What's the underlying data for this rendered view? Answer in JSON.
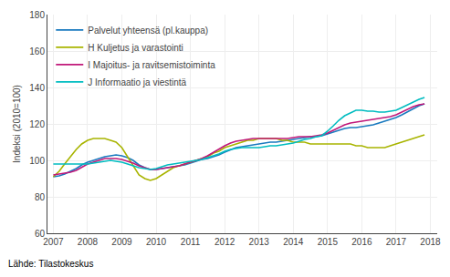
{
  "chart_data": {
    "type": "line",
    "ylabel": "Indeksi (2010=100)",
    "annotations": [
      "Lähde: Tilastokeskus"
    ],
    "x": [
      2007.0,
      2007.17,
      2007.33,
      2007.5,
      2007.67,
      2007.83,
      2008.0,
      2008.17,
      2008.33,
      2008.5,
      2008.67,
      2008.83,
      2009.0,
      2009.17,
      2009.33,
      2009.5,
      2009.67,
      2009.83,
      2010.0,
      2010.17,
      2010.33,
      2010.5,
      2010.67,
      2010.83,
      2011.0,
      2011.17,
      2011.33,
      2011.5,
      2011.67,
      2011.83,
      2012.0,
      2012.17,
      2012.33,
      2012.5,
      2012.67,
      2012.83,
      2013.0,
      2013.17,
      2013.33,
      2013.5,
      2013.67,
      2013.83,
      2014.0,
      2014.17,
      2014.33,
      2014.5,
      2014.67,
      2014.83,
      2015.0,
      2015.17,
      2015.33,
      2015.5,
      2015.67,
      2015.83,
      2016.0,
      2016.17,
      2016.33,
      2016.5,
      2016.67,
      2016.83,
      2017.0,
      2017.17,
      2017.33,
      2017.5,
      2017.67,
      2017.83
    ],
    "series": [
      {
        "name": "Palvelut yhteensä (pl.kauppa)",
        "color": "#1a7abf",
        "values": [
          91,
          91.5,
          92.5,
          94,
          95.5,
          97.5,
          99,
          100,
          101,
          102,
          102.5,
          103,
          102.5,
          101.5,
          100,
          97.5,
          96,
          95,
          95,
          95.5,
          96,
          96.5,
          97,
          97.5,
          98.5,
          99.5,
          100.5,
          101,
          102,
          103,
          104.5,
          106,
          107,
          107.5,
          108,
          108.5,
          109,
          109.5,
          110,
          110,
          110.5,
          111,
          111.5,
          112,
          112.5,
          113,
          113,
          113.5,
          114.5,
          115.5,
          116.5,
          117.5,
          118,
          118,
          118.5,
          119,
          119.5,
          120.5,
          121.5,
          122.5,
          123.5,
          125,
          126.5,
          128.5,
          130,
          131
        ]
      },
      {
        "name": "H Kuljetus ja varastointi",
        "color": "#a8b400",
        "values": [
          91,
          94,
          98,
          102,
          106,
          109,
          111,
          112,
          112,
          112,
          111,
          110,
          107,
          102,
          97,
          92,
          90,
          89,
          90,
          92,
          94,
          96,
          97,
          98,
          99,
          100,
          101,
          102,
          104,
          105,
          107,
          108,
          109,
          110,
          111,
          111,
          112,
          112,
          112,
          112,
          111,
          111,
          110,
          110,
          110,
          109,
          109,
          109,
          109,
          109,
          109,
          109,
          109,
          108,
          108,
          107,
          107,
          107,
          107,
          108,
          109,
          110,
          111,
          112,
          113,
          114
        ]
      },
      {
        "name": "I Majoitus- ja ravitsemistoiminta",
        "color": "#c0187a",
        "values": [
          92,
          92.5,
          93,
          93.5,
          94.5,
          96,
          98,
          99,
          100,
          101,
          101,
          101,
          100.5,
          99.5,
          98.5,
          97,
          96,
          95,
          95,
          95.5,
          96,
          96.5,
          97,
          98,
          99,
          100,
          101,
          102.5,
          104.5,
          106,
          108,
          109.5,
          110.5,
          111,
          111.5,
          112,
          112,
          112,
          112,
          112,
          112,
          112,
          112.5,
          113,
          113,
          113,
          113.5,
          114,
          115,
          116.5,
          118,
          119.5,
          120.5,
          121,
          121.5,
          122,
          122.5,
          123,
          123.5,
          124,
          125,
          126.5,
          128,
          129.5,
          130.5,
          131
        ]
      },
      {
        "name": "J Informaatio ja viestintä",
        "color": "#00bcc0",
        "values": [
          98,
          98,
          98,
          98,
          98,
          98,
          98,
          98.5,
          99,
          99.5,
          100,
          99.5,
          99,
          98,
          97,
          96,
          95.5,
          95,
          95.5,
          96.5,
          97.5,
          98,
          98.5,
          99,
          99.5,
          100,
          100.5,
          101.5,
          102.5,
          103.5,
          105,
          106,
          106.5,
          107,
          107,
          107,
          107,
          107.5,
          108,
          108,
          108.5,
          109,
          109.5,
          110.5,
          111.5,
          112,
          113,
          113.5,
          116,
          119,
          122,
          124.5,
          126,
          127.5,
          127.5,
          127,
          127,
          126.5,
          126.5,
          127,
          127.5,
          129,
          130.5,
          132,
          133.5,
          134.5
        ]
      }
    ],
    "xlim": [
      2006.83,
      2018.2
    ],
    "xticks": [
      2007,
      2008,
      2009,
      2010,
      2011,
      2012,
      2013,
      2014,
      2015,
      2016,
      2017,
      2018
    ],
    "ylim": [
      60,
      180
    ],
    "yticks": [
      60,
      80,
      100,
      120,
      140,
      160,
      180
    ],
    "grid": true,
    "legend": "upper left"
  }
}
